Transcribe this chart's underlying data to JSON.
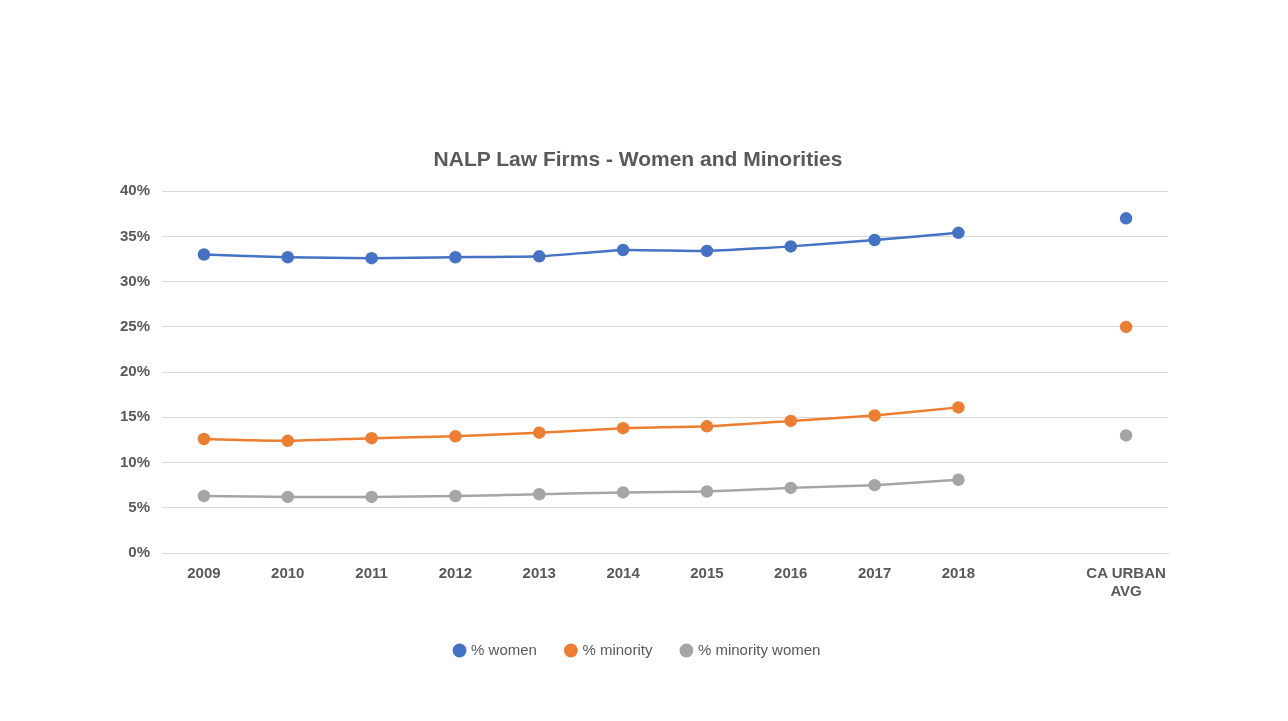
{
  "chart_data": {
    "type": "line",
    "title": "NALP Law Firms - Women and Minorities",
    "categories": [
      "2009",
      "2010",
      "2011",
      "2012",
      "2013",
      "2014",
      "2015",
      "2016",
      "2017",
      "2018",
      null,
      "CA URBAN AVG"
    ],
    "series": [
      {
        "name": "% women",
        "color": "#4472c4",
        "values": [
          33.0,
          32.7,
          32.6,
          32.7,
          32.8,
          33.5,
          33.4,
          33.9,
          34.6,
          35.4,
          null,
          37.0
        ]
      },
      {
        "name": "% minority",
        "color": "#ed7d31",
        "values": [
          12.6,
          12.4,
          12.7,
          12.9,
          13.3,
          13.8,
          14.0,
          14.6,
          15.2,
          16.1,
          null,
          25.0
        ]
      },
      {
        "name": "% minority women",
        "color": "#a5a5a5",
        "values": [
          6.3,
          6.2,
          6.2,
          6.3,
          6.5,
          6.7,
          6.8,
          7.2,
          7.5,
          8.1,
          null,
          13.0
        ]
      }
    ],
    "ylim": [
      0,
      40
    ],
    "yticks": [
      {
        "value": 0,
        "label": "0%"
      },
      {
        "value": 5,
        "label": "5%"
      },
      {
        "value": 10,
        "label": "10%"
      },
      {
        "value": 15,
        "label": "15%"
      },
      {
        "value": 20,
        "label": "20%"
      },
      {
        "value": 25,
        "label": "25%"
      },
      {
        "value": 30,
        "label": "30%"
      },
      {
        "value": 35,
        "label": "35%"
      },
      {
        "value": 40,
        "label": "40%"
      }
    ],
    "grid": "y",
    "legend": "bottom",
    "marker": "circle",
    "line_style": "solid"
  }
}
